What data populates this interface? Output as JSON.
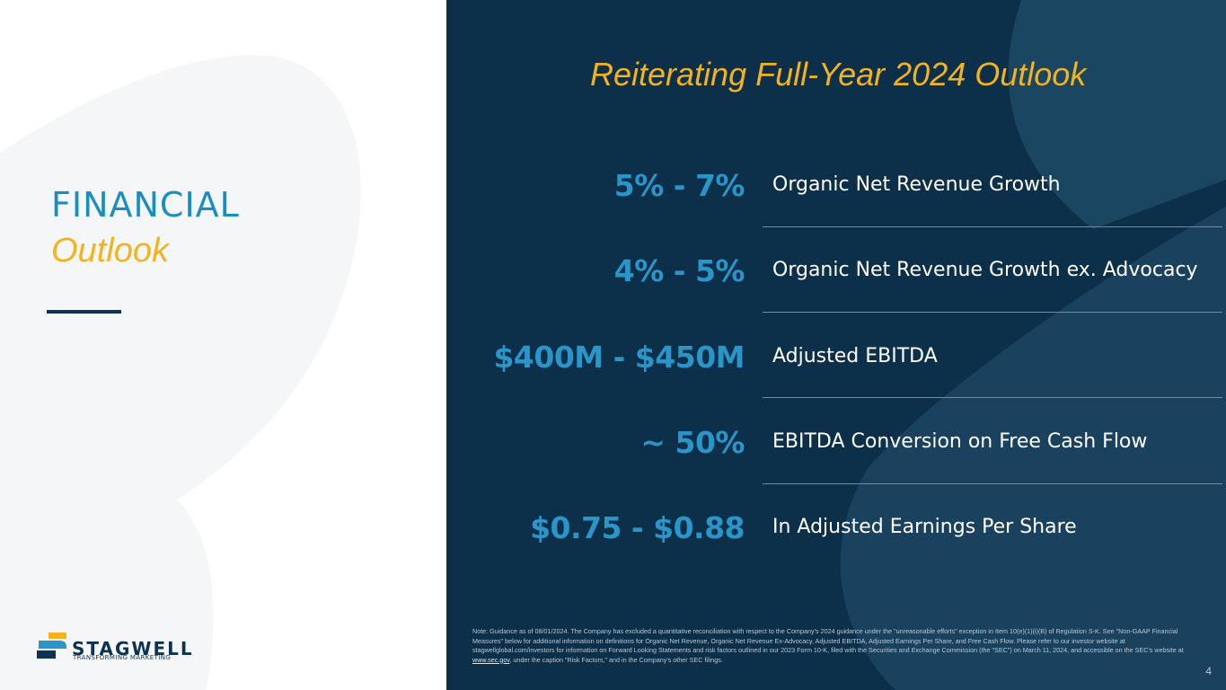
{
  "left": {
    "title_line1": "FINANCIAL",
    "title_line2": "Outlook",
    "logo": {
      "name": "STAGWELL",
      "tagline": "TRANSFORMING MARKETING"
    }
  },
  "right": {
    "headline": "Reiterating Full-Year 2024 Outlook",
    "rows": [
      {
        "metric": "5% - 7%",
        "label": "Organic Net Revenue Growth"
      },
      {
        "metric": "4% - 5%",
        "label": "Organic Net Revenue Growth ex. Advocacy"
      },
      {
        "metric": "$400M - $450M",
        "label": "Adjusted EBITDA"
      },
      {
        "metric": "~ 50%",
        "label": "EBITDA Conversion on Free Cash Flow"
      },
      {
        "metric": "$0.75 - $0.88",
        "label": "In Adjusted Earnings Per Share"
      }
    ],
    "note_before_link": "Note: Guidance as of 08/01/2024. The Company has excluded a quantitative reconciliation with respect to the Company's 2024 guidance under the \"unreasonable efforts\" exception in Item 10(e)(1)(i)(B) of Regulation S-K. See \"Non-GAAP Financial Measures\" below for additional information on definitions for Organic Net Revenue, Organic Net Revenue Ex-Advocacy, Adjusted EBITDA, Adjusted Earnings Per Share, and Free Cash Flow. Please refer to our investor website at stagwellglobal.com/investors for information on Forward Looking Statements and risk factors outlined in our 2023 Form 10-K, filed with the Securities and Exchange Commission (the \"SEC\") on March 11, 2024, and accessible on the SEC's website at ",
    "note_link": "www.sec.gov",
    "note_after_link": ", under the caption \"Risk Factors,\" and in the Company's other SEC filings.",
    "page_number": "4"
  },
  "colors": {
    "navy": "#0c2f4a",
    "accent_blue": "#2a95c9",
    "accent_gold": "#f5b21f"
  }
}
